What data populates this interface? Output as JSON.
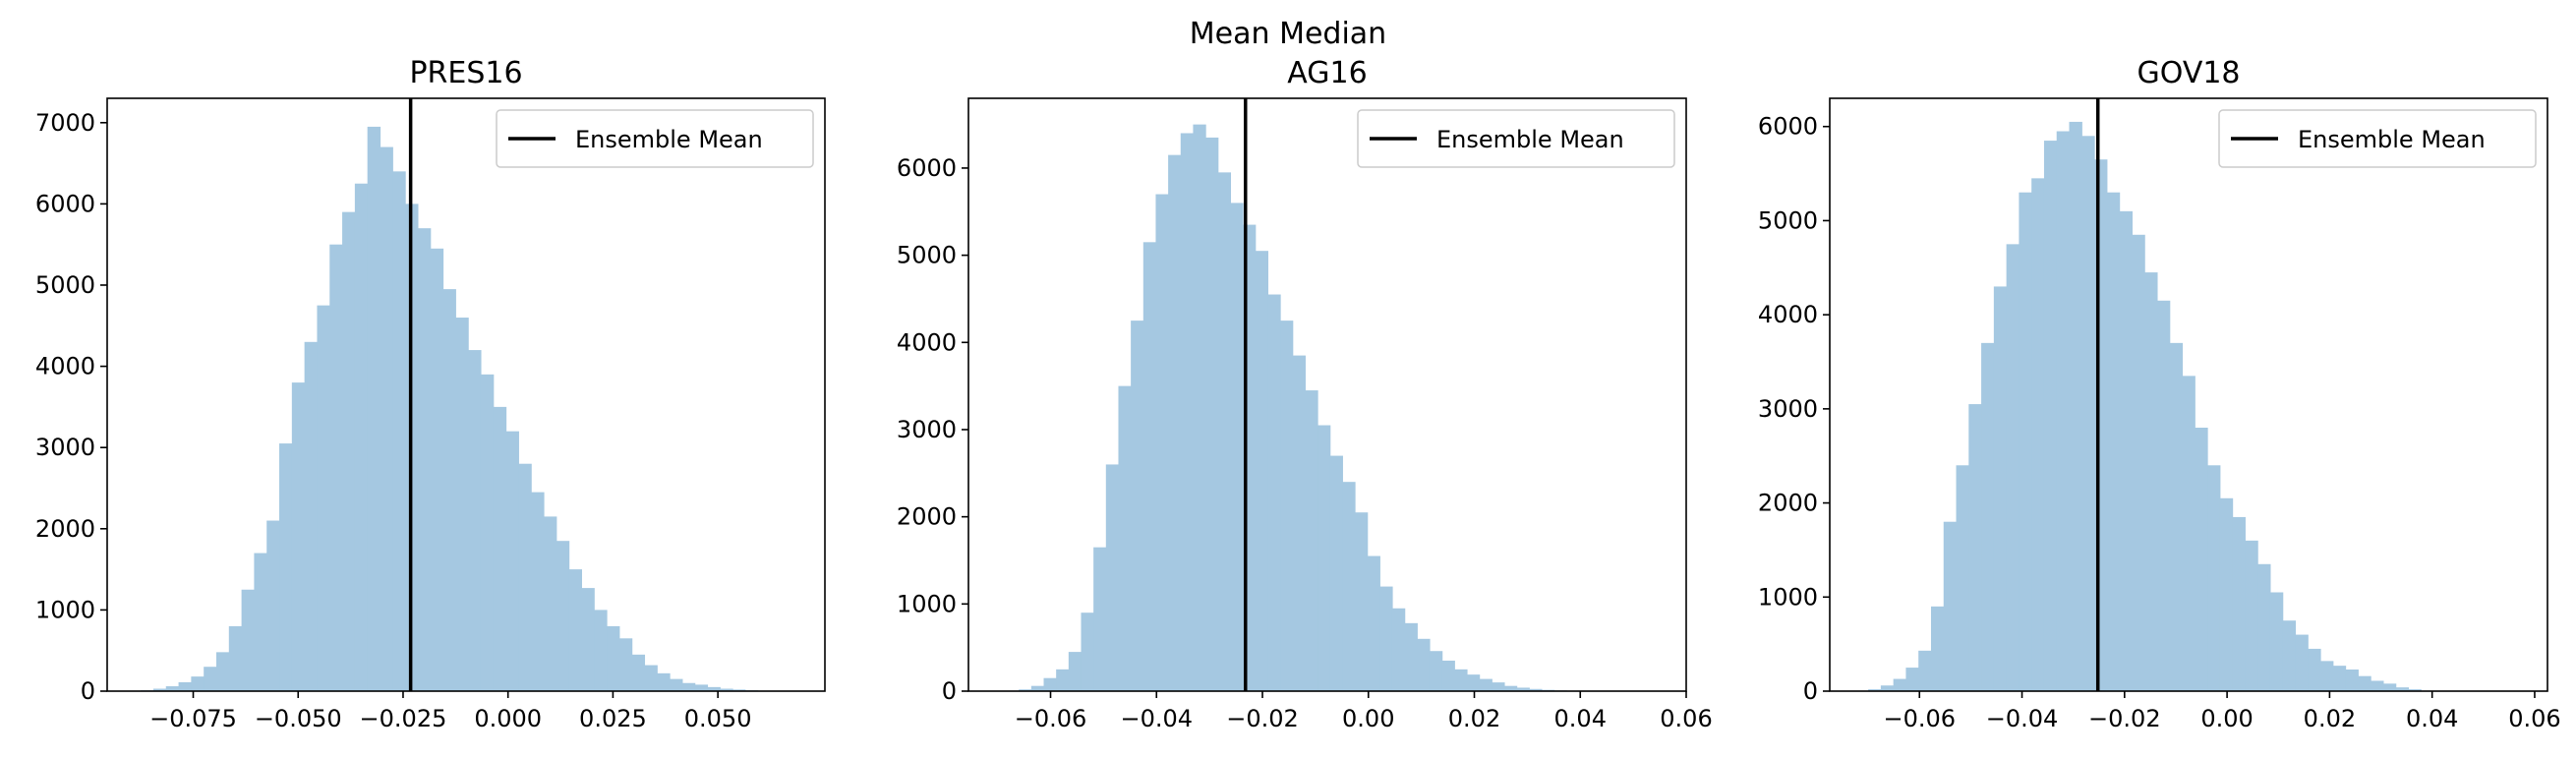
{
  "figure": {
    "suptitle": "Mean Median"
  },
  "colors": {
    "bar": "#a5c8e1",
    "mean_line": "#000000",
    "axis": "#000000"
  },
  "chart_data": [
    {
      "type": "bar",
      "title": "PRES16",
      "xlabel": "",
      "ylabel": "",
      "xlim": [
        -0.0955,
        0.0755
      ],
      "ylim": [
        0,
        7300
      ],
      "xticks": [
        -0.075,
        -0.05,
        -0.025,
        0.0,
        0.025,
        0.05
      ],
      "xtick_labels": [
        "−0.075",
        "−0.050",
        "−0.025",
        "0.000",
        "0.025",
        "0.050"
      ],
      "yticks": [
        0,
        1000,
        2000,
        3000,
        4000,
        5000,
        6000,
        7000
      ],
      "ytick_labels": [
        "0",
        "1000",
        "2000",
        "3000",
        "4000",
        "5000",
        "6000",
        "7000"
      ],
      "bin_start": -0.0875,
      "bin_width": 0.003,
      "values": [
        10,
        30,
        60,
        110,
        180,
        300,
        480,
        800,
        1250,
        1700,
        2100,
        3050,
        3800,
        4300,
        4750,
        5500,
        5900,
        6250,
        6950,
        6700,
        6400,
        6000,
        5700,
        5450,
        4950,
        4600,
        4200,
        3900,
        3500,
        3200,
        2800,
        2450,
        2150,
        1850,
        1500,
        1270,
        1000,
        800,
        650,
        450,
        320,
        220,
        150,
        100,
        80,
        50,
        30,
        20,
        10,
        5
      ],
      "ensemble_mean": -0.0232,
      "grid": false,
      "legend": {
        "position": "top-right",
        "entries": [
          "Ensemble Mean"
        ]
      }
    },
    {
      "type": "bar",
      "title": "AG16",
      "xlabel": "",
      "ylabel": "",
      "xlim": [
        -0.0755,
        0.06
      ],
      "ylim": [
        0,
        6800
      ],
      "xticks": [
        -0.06,
        -0.04,
        -0.02,
        0.0,
        0.02,
        0.04,
        0.06
      ],
      "xtick_labels": [
        "−0.06",
        "−0.04",
        "−0.02",
        "0.00",
        "0.02",
        "0.04",
        "0.06"
      ],
      "yticks": [
        0,
        1000,
        2000,
        3000,
        4000,
        5000,
        6000
      ],
      "ytick_labels": [
        "0",
        "1000",
        "2000",
        "3000",
        "4000",
        "5000",
        "6000"
      ],
      "bin_start": -0.066,
      "bin_width": 0.00235,
      "values": [
        20,
        60,
        150,
        250,
        450,
        900,
        1650,
        2600,
        3500,
        4250,
        5150,
        5700,
        6150,
        6400,
        6500,
        6350,
        5950,
        5600,
        5350,
        5050,
        4550,
        4250,
        3850,
        3450,
        3050,
        2700,
        2400,
        2050,
        1550,
        1200,
        950,
        780,
        600,
        460,
        350,
        250,
        190,
        140,
        100,
        60,
        40,
        25,
        15,
        8,
        5
      ],
      "ensemble_mean": -0.0232,
      "grid": false,
      "legend": {
        "position": "top-right",
        "entries": [
          "Ensemble Mean"
        ]
      }
    },
    {
      "type": "bar",
      "title": "GOV18",
      "xlabel": "",
      "ylabel": "",
      "xlim": [
        -0.0775,
        0.0625
      ],
      "ylim": [
        0,
        6300
      ],
      "xticks": [
        -0.06,
        -0.04,
        -0.02,
        0.0,
        0.02,
        0.04,
        0.06
      ],
      "xtick_labels": [
        "−0.06",
        "−0.04",
        "−0.02",
        "0.00",
        "0.02",
        "0.04",
        "0.06"
      ],
      "yticks": [
        0,
        1000,
        2000,
        3000,
        4000,
        5000,
        6000
      ],
      "ytick_labels": [
        "0",
        "1000",
        "2000",
        "3000",
        "4000",
        "5000",
        "6000"
      ],
      "bin_start": -0.07,
      "bin_width": 0.00245,
      "values": [
        20,
        60,
        130,
        250,
        430,
        900,
        1800,
        2400,
        3050,
        3700,
        4300,
        4750,
        5300,
        5450,
        5850,
        5950,
        6050,
        5900,
        5650,
        5300,
        5100,
        4850,
        4450,
        4150,
        3700,
        3350,
        2800,
        2400,
        2050,
        1850,
        1600,
        1350,
        1050,
        750,
        600,
        450,
        320,
        270,
        230,
        160,
        110,
        80,
        40,
        20
      ],
      "ensemble_mean": -0.0252,
      "grid": false,
      "legend": {
        "position": "top-right",
        "entries": [
          "Ensemble Mean"
        ]
      }
    }
  ]
}
